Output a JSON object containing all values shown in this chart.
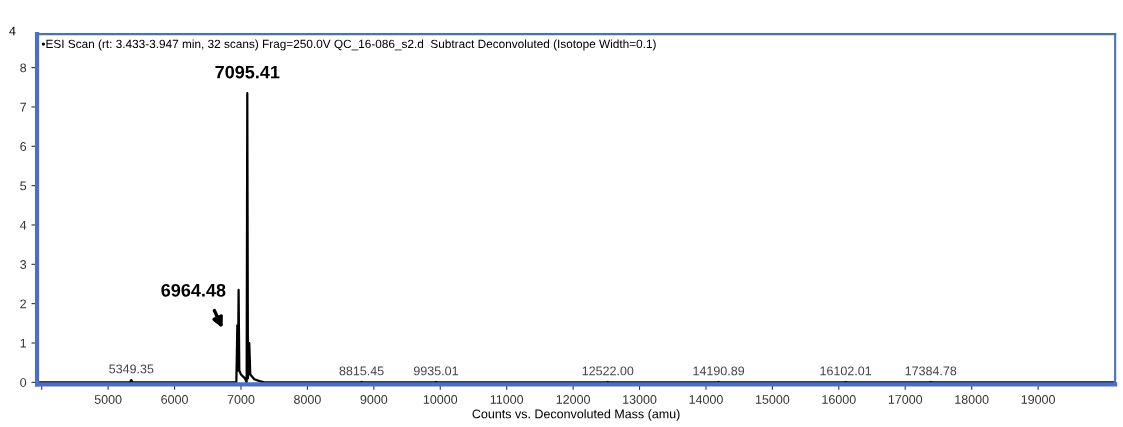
{
  "chart_data": {
    "type": "line",
    "title": "•ESI Scan (rt: 3.433-3.947 min, 32 scans) Frag=250.0V QC_16-086_s2.d  Subtract Deconvoluted (Isotope Width=0.1)",
    "xlabel": "Counts vs. Deconvoluted Mass (amu)",
    "ylabel": "4",
    "xlim": [
      3930,
      20160
    ],
    "xticks": [
      {
        "value": 4000,
        "label": null
      },
      5000,
      6000,
      7000,
      8000,
      9000,
      10000,
      11000,
      12000,
      13000,
      14000,
      15000,
      16000,
      17000,
      18000,
      19000
    ],
    "ylim": [
      -0.05,
      8.85
    ],
    "yticks": [
      0,
      1,
      2,
      3,
      4,
      5,
      6,
      7,
      8
    ],
    "grid": false,
    "legend": false,
    "marker": "none",
    "line_style": "solid",
    "series": [
      {
        "color": "#000000",
        "x": [
          3950,
          5330,
          5349,
          5368,
          6930,
          6945,
          6955,
          6964,
          6975,
          7000,
          7060,
          7085,
          7095,
          7105,
          7125,
          7140,
          7200,
          7280,
          7350,
          8800,
          8815,
          8830,
          9920,
          9935,
          9950,
          12505,
          12522,
          12540,
          14175,
          14190,
          14205,
          16085,
          16102,
          16120,
          17370,
          17384,
          17400,
          20150
        ],
        "values": [
          0,
          0,
          0.06,
          0,
          0,
          1.45,
          0.3,
          2.35,
          0.3,
          0.2,
          0.1,
          0,
          7.35,
          0.1,
          1.0,
          0.2,
          0.08,
          0.03,
          0,
          0,
          0.01,
          0,
          0,
          0.01,
          0,
          0,
          0.01,
          0,
          0,
          0.01,
          0,
          0,
          0.01,
          0,
          0,
          0.01,
          0,
          0
        ]
      }
    ],
    "annotations": [
      {
        "text": "7095.41",
        "x": 7095,
        "y": 7.35
      },
      "6964.48",
      {
        "text": "5349.35",
        "x": 5349,
        "y": 0.06
      },
      {
        "text": "8815.45",
        "x": 8815,
        "y": 0.01
      },
      {
        "text": "9935.01",
        "x": 9935,
        "y": 0.01
      },
      {
        "text": "12522.00",
        "x": 12522,
        "y": 0.01
      },
      {
        "text": "14190.89",
        "x": 14190,
        "y": 0.01
      },
      {
        "text": "16102.01",
        "x": 16102,
        "y": 0.01
      },
      {
        "text": "17384.78",
        "x": 17384,
        "y": 0.01
      }
    ]
  }
}
